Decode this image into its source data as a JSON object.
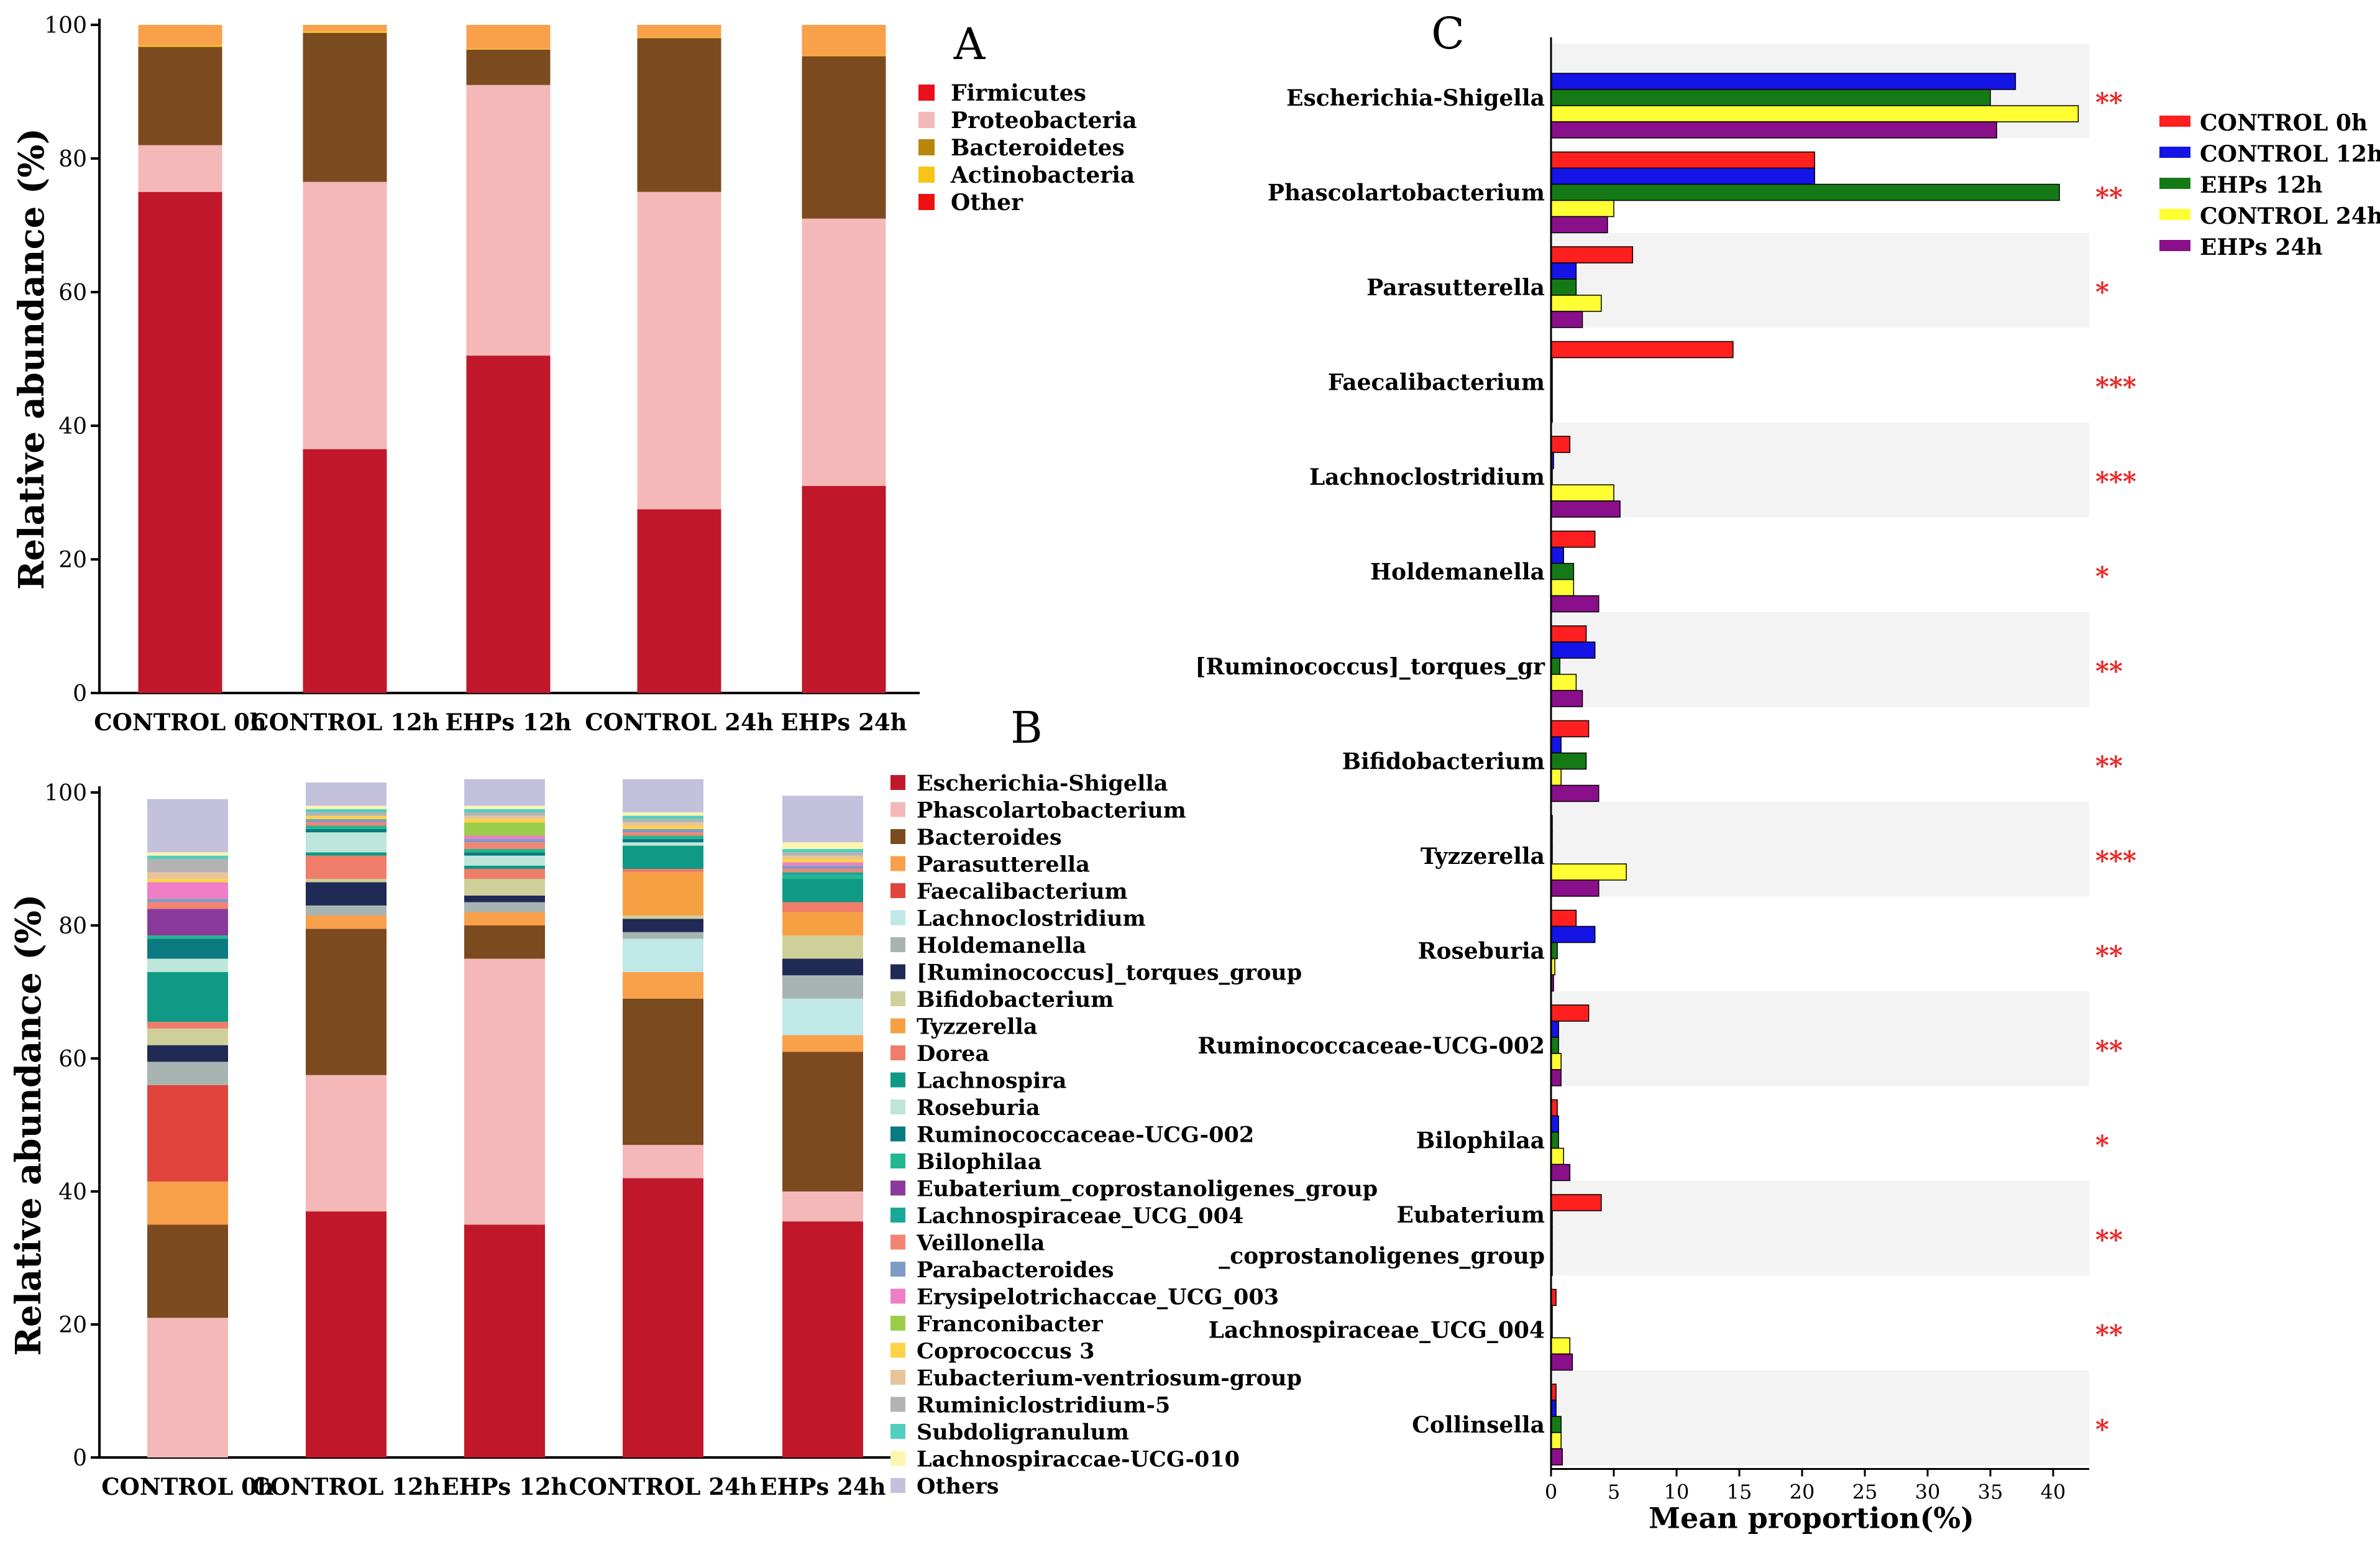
{
  "colors": {
    "firmicutes": "#c0182a",
    "proteobacteria": "#f4b8b8",
    "bacteroidetes": "#7b4a1e",
    "actinobacteria": "#f5c518",
    "other": "#f9a04b",
    "control_0h": "#ff1f1f",
    "control_12h": "#1414e6",
    "ehps_12h": "#157a15",
    "control_24h": "#ffff33",
    "ehps_24h": "#8a0f8a",
    "star": "#ee2222",
    "stripe": "#f3f3f3"
  },
  "chart_data": [
    {
      "type": "bar",
      "stacked": true,
      "panel_label": "A",
      "title": "",
      "xlabel": "",
      "ylabel": "Relative abundance (%)",
      "ylim": [
        0,
        100
      ],
      "yticks": [
        "0",
        "20",
        "40",
        "60",
        "80",
        "100"
      ],
      "categories": [
        "CONTROL 0h",
        "CONTROL 12h",
        "EHPs 12h",
        "CONTROL 24h",
        "EHPs 24h"
      ],
      "series": [
        {
          "name": "Firmicutes",
          "color": "#c0182a",
          "values": [
            75.0,
            36.5,
            50.5,
            27.5,
            31.0
          ]
        },
        {
          "name": "Proteobacteria",
          "color": "#f4b8b8",
          "values": [
            7.0,
            40.0,
            40.5,
            47.5,
            40.0
          ]
        },
        {
          "name": "Bacteroidetes",
          "color": "#7b4a1e",
          "values": [
            14.7,
            22.3,
            5.3,
            23.0,
            24.3
          ]
        },
        {
          "name": "Actinobacteria",
          "color": "#f5c518",
          "values": [
            0.2,
            0.2,
            0.1,
            0.1,
            0.1
          ]
        },
        {
          "name": "Other",
          "color": "#f9a04b",
          "values": [
            3.1,
            1.0,
            3.6,
            1.9,
            4.6
          ]
        }
      ],
      "legend": [
        {
          "label": "Firmicutes",
          "color": "#e8101c"
        },
        {
          "label": "Proteobacteria",
          "color": "#f4b8b8"
        },
        {
          "label": "Bacteroidetes",
          "color": "#b8860b"
        },
        {
          "label": "Actinobacteria",
          "color": "#f5c518"
        },
        {
          "label": "Other",
          "color": "#ee1111"
        }
      ]
    },
    {
      "type": "bar",
      "stacked": true,
      "panel_label": "B",
      "title": "",
      "xlabel": "",
      "ylabel": "Relative abundance (%)",
      "ylim": [
        0,
        100
      ],
      "yticks": [
        "0",
        "20",
        "40",
        "60",
        "80",
        "100"
      ],
      "categories": [
        "CONTROL 0h",
        "CONTROL 12h",
        "EHPs 12h",
        "CONTROL 24h",
        "EHPs 24h"
      ],
      "series": [
        {
          "name": "Escherichia-Shigella",
          "color": "#c0182a",
          "values": [
            0.0,
            37.0,
            35.0,
            42.0,
            35.5
          ]
        },
        {
          "name": "Phascolartobacterium",
          "color": "#f4b8b8",
          "values": [
            21.0,
            20.5,
            40.0,
            5.0,
            4.5
          ]
        },
        {
          "name": "Bacteroides",
          "color": "#7b4a1e",
          "values": [
            14.0,
            22.0,
            5.0,
            22.0,
            21.0
          ]
        },
        {
          "name": "Parasutterella",
          "color": "#f9a04b",
          "values": [
            6.5,
            2.0,
            2.0,
            4.0,
            2.5
          ]
        },
        {
          "name": "Faecalibacterium",
          "color": "#e0443c",
          "values": [
            14.5,
            0.0,
            0.0,
            0.0,
            0.0
          ]
        },
        {
          "name": "Lachnoclostridium",
          "color": "#bfe8e6",
          "values": [
            0.0,
            0.0,
            0.0,
            5.0,
            5.5
          ]
        },
        {
          "name": "Holdemanella",
          "color": "#a8b4b2",
          "values": [
            3.5,
            1.5,
            1.5,
            1.0,
            3.5
          ]
        },
        {
          "name": "[Ruminococcus]_torques_group",
          "color": "#1f2a55",
          "values": [
            2.5,
            3.5,
            1.0,
            2.0,
            2.5
          ]
        },
        {
          "name": "Bifidobacterium",
          "color": "#cfcf9a",
          "values": [
            2.5,
            0.5,
            2.5,
            0.5,
            3.5
          ]
        },
        {
          "name": "Tyzzerella",
          "color": "#f7a043",
          "values": [
            0.0,
            0.0,
            0.0,
            6.5,
            3.5
          ]
        },
        {
          "name": "Dorea",
          "color": "#f07c6a",
          "values": [
            1.0,
            3.5,
            1.5,
            0.5,
            1.5
          ]
        },
        {
          "name": "Lachnospira",
          "color": "#0f9a86",
          "values": [
            7.5,
            0.5,
            0.5,
            3.5,
            3.5
          ]
        },
        {
          "name": "Roseburia",
          "color": "#bfe6da",
          "values": [
            2.0,
            3.0,
            1.5,
            0.5,
            0.0
          ]
        },
        {
          "name": "Ruminococcaceae-UCG-002",
          "color": "#0a7a80",
          "values": [
            3.0,
            0.5,
            0.5,
            0.5,
            0.0
          ]
        },
        {
          "name": "Bilophilaa",
          "color": "#22b88f",
          "values": [
            0.5,
            0.5,
            0.5,
            0.5,
            0.5
          ]
        },
        {
          "name": "Eubaterium_coprostanoligenes_group",
          "color": "#8a3a9a",
          "values": [
            4.0,
            0.0,
            0.0,
            0.0,
            0.0
          ]
        },
        {
          "name": "Lachnospiraceae_UCG_004",
          "color": "#1aa89a",
          "values": [
            0.0,
            0.0,
            0.0,
            0.0,
            0.5
          ]
        },
        {
          "name": "Veillonella",
          "color": "#f48472",
          "values": [
            1.0,
            0.5,
            1.0,
            0.5,
            0.5
          ]
        },
        {
          "name": "Parabacteroides",
          "color": "#7f9bc4",
          "values": [
            0.5,
            0.5,
            0.5,
            0.5,
            0.5
          ]
        },
        {
          "name": "Erysipelotrichaccae_UCG_003",
          "color": "#ee7fc6",
          "values": [
            2.5,
            0.0,
            0.5,
            0.0,
            0.5
          ]
        },
        {
          "name": "Franconibacter",
          "color": "#9ccd4a",
          "values": [
            0.0,
            0.0,
            2.0,
            0.0,
            0.0
          ]
        },
        {
          "name": "Coprococcus 3",
          "color": "#ffd24a",
          "values": [
            0.5,
            0.5,
            0.5,
            0.5,
            0.5
          ]
        },
        {
          "name": "Eubacterium-ventriosum-group",
          "color": "#e8c49a",
          "values": [
            1.0,
            0.0,
            0.5,
            0.5,
            0.5
          ]
        },
        {
          "name": "Ruminiclostridium-5",
          "color": "#b3b3b3",
          "values": [
            2.0,
            0.5,
            0.5,
            0.5,
            0.5
          ]
        },
        {
          "name": "Subdoligranulum",
          "color": "#4fcfbf",
          "values": [
            0.5,
            0.5,
            0.5,
            0.5,
            0.5
          ]
        },
        {
          "name": "Lachnospiraccae-UCG-010",
          "color": "#fff5b0",
          "values": [
            0.5,
            0.5,
            0.5,
            0.5,
            1.0
          ]
        },
        {
          "name": "Others",
          "color": "#c4c1dd",
          "values": [
            8.0,
            3.5,
            4.0,
            5.0,
            7.0
          ]
        }
      ]
    },
    {
      "type": "bar",
      "orientation": "horizontal",
      "grouped": true,
      "panel_label": "C",
      "title": "",
      "xlabel": "Mean proportion(%)",
      "ylabel": "",
      "xlim": [
        0,
        42
      ],
      "xticks": [
        "0",
        "5",
        "10",
        "15",
        "20",
        "25",
        "30",
        "35",
        "40"
      ],
      "series_names": [
        "CONTROL 0h",
        "CONTROL 12h",
        "EHPs 12h",
        "CONTROL 24h",
        "EHPs 24h"
      ],
      "series_colors": [
        "#ff1f1f",
        "#1414e6",
        "#157a15",
        "#ffff33",
        "#8a0f8a"
      ],
      "rows": [
        {
          "label": [
            "Escherichia-Shigella"
          ],
          "sig": "**",
          "values": [
            0.0,
            37.0,
            35.0,
            42.0,
            35.5
          ]
        },
        {
          "label": [
            "Phascolartobacterium"
          ],
          "sig": "**",
          "values": [
            21.0,
            21.0,
            40.5,
            5.0,
            4.5
          ]
        },
        {
          "label": [
            "Parasutterella"
          ],
          "sig": "*",
          "values": [
            6.5,
            2.0,
            2.0,
            4.0,
            2.5
          ]
        },
        {
          "label": [
            "Faecalibacterium"
          ],
          "sig": "***",
          "values": [
            14.5,
            0.1,
            0.1,
            0.1,
            0.1
          ]
        },
        {
          "label": [
            "Lachnoclostridium"
          ],
          "sig": "***",
          "values": [
            1.5,
            0.2,
            0.1,
            5.0,
            5.5
          ]
        },
        {
          "label": [
            "Holdemanella"
          ],
          "sig": "*",
          "values": [
            3.5,
            1.0,
            1.8,
            1.8,
            3.8
          ]
        },
        {
          "label": [
            "[Ruminococcus]_torques_gr"
          ],
          "sig": "**",
          "values": [
            2.8,
            3.5,
            0.7,
            2.0,
            2.5
          ]
        },
        {
          "label": [
            "Bifidobacterium"
          ],
          "sig": "**",
          "values": [
            3.0,
            0.8,
            2.8,
            0.8,
            3.8
          ]
        },
        {
          "label": [
            "Tyzzerella"
          ],
          "sig": "***",
          "values": [
            0.1,
            0.1,
            0.1,
            6.0,
            3.8
          ]
        },
        {
          "label": [
            "Roseburia"
          ],
          "sig": "**",
          "values": [
            2.0,
            3.5,
            0.5,
            0.3,
            0.2
          ]
        },
        {
          "label": [
            "Ruminococcaceae-UCG-002"
          ],
          "sig": "**",
          "values": [
            3.0,
            0.6,
            0.6,
            0.8,
            0.8
          ]
        },
        {
          "label": [
            "Bilophilaa"
          ],
          "sig": "*",
          "values": [
            0.5,
            0.6,
            0.6,
            1.0,
            1.5
          ]
        },
        {
          "label": [
            "Eubaterium",
            "_coprostanoligenes_group"
          ],
          "sig": "**",
          "values": [
            4.0,
            0.1,
            0.1,
            0.1,
            0.1
          ]
        },
        {
          "label": [
            "Lachnospiraceae_UCG_004"
          ],
          "sig": "**",
          "values": [
            0.4,
            0.1,
            0.1,
            1.5,
            1.7
          ]
        },
        {
          "label": [
            "Collinsella"
          ],
          "sig": "*",
          "values": [
            0.4,
            0.4,
            0.8,
            0.8,
            0.9
          ]
        }
      ],
      "legend": [
        "CONTROL 0h",
        "CONTROL 12h",
        "EHPs 12h",
        "CONTROL 24h",
        "EHPs 24h"
      ]
    }
  ]
}
